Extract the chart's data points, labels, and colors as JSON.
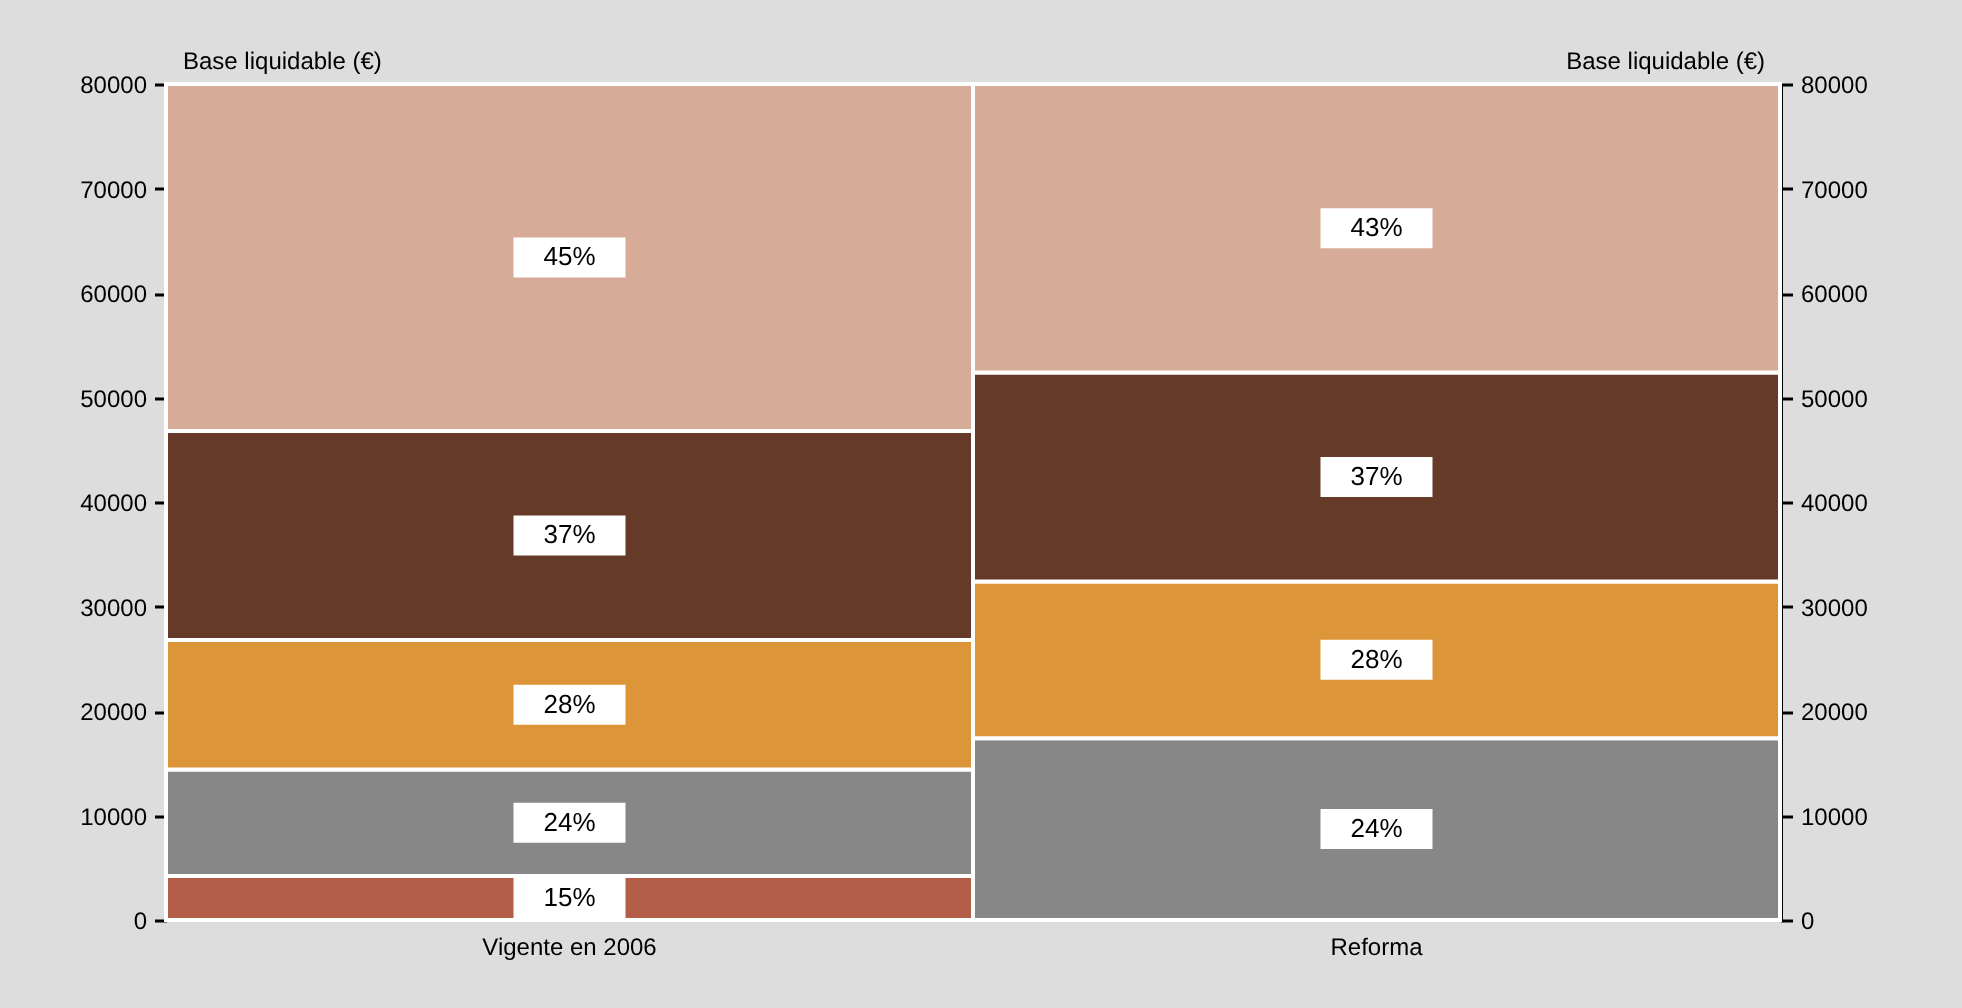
{
  "chart_data": {
    "type": "bar",
    "stacked": true,
    "ylabel": "Base liquidable (€)",
    "y2label": "Base liquidable (€)",
    "categories": [
      "Vigente en 2006",
      "Reforma"
    ],
    "series": [
      {
        "color": "#b35e48",
        "values": [
          4200,
          null
        ]
      },
      {
        "color": "#878787",
        "values": [
          10200,
          17400
        ]
      },
      {
        "color": "#dc9639",
        "values": [
          12400,
          15000
        ]
      },
      {
        "color": "#653a28",
        "values": [
          20000,
          20000
        ]
      },
      {
        "color": "#d6ac99",
        "values": [
          33200,
          27600
        ]
      }
    ],
    "annotations": [
      "15%",
      "24%",
      "28%",
      "37%",
      "45%",
      "24%",
      "28%",
      "37%",
      "43%"
    ],
    "ylim": [
      0,
      80000
    ],
    "yticks": [
      0,
      10000,
      20000,
      30000,
      40000,
      50000,
      60000,
      70000,
      80000
    ],
    "y2lim": [
      0,
      80000
    ],
    "y2ticks": [
      0,
      10000,
      20000,
      30000,
      40000,
      50000,
      60000,
      70000,
      80000
    ]
  }
}
